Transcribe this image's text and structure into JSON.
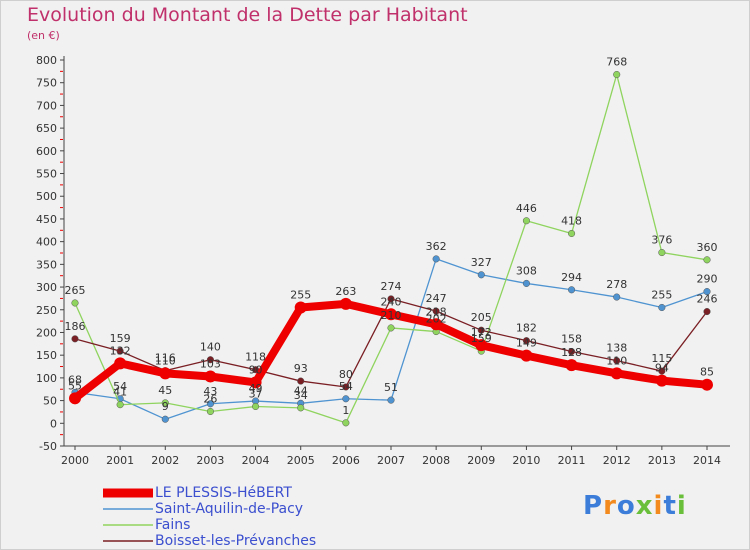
{
  "title": "Evolution du Montant de la Dette par Habitant",
  "subtitle": "(en €)",
  "logo": {
    "text": "Proxiti",
    "colors": [
      "#3b7dd8",
      "#f28a1e",
      "#3b7dd8",
      "#6abf3a",
      "#f28a1e",
      "#3b7dd8",
      "#6abf3a"
    ]
  },
  "chart_data": {
    "type": "line",
    "categories": [
      "2000",
      "2001",
      "2002",
      "2003",
      "2004",
      "2005",
      "2006",
      "2007",
      "2008",
      "2009",
      "2010",
      "2011",
      "2012",
      "2013",
      "2014"
    ],
    "ylim": [
      -50,
      800
    ],
    "yticks": [
      -50,
      0,
      50,
      100,
      150,
      200,
      250,
      300,
      350,
      400,
      450,
      500,
      550,
      600,
      650,
      700,
      750,
      800
    ],
    "grid": false,
    "legend_position": "bottom-left",
    "series": [
      {
        "name": "Saint-Aquilin-de-Pacy",
        "color": "#4f94d1",
        "values": [
          68,
          54,
          9,
          43,
          49,
          44,
          54,
          51,
          362,
          327,
          308,
          294,
          278,
          255,
          290
        ],
        "labels": [
          "68",
          "54",
          "9",
          "43",
          "49",
          "44",
          "54",
          "51",
          "362",
          "327",
          "308",
          "294",
          "278",
          "255",
          "290"
        ]
      },
      {
        "name": "Fains",
        "color": "#8fd45e",
        "values": [
          265,
          41,
          45,
          26,
          37,
          34,
          1,
          210,
          202,
          159,
          446,
          418,
          768,
          376,
          360
        ],
        "labels": [
          "265",
          "41",
          "45",
          "26",
          "37",
          "34",
          "1",
          "210",
          "202",
          "159",
          "446",
          "418",
          "768",
          "376",
          "360"
        ]
      },
      {
        "name": "Boisset-les-Prévanches",
        "color": "#7a1f24",
        "values": [
          186,
          159,
          116,
          140,
          118,
          93,
          80,
          274,
          247,
          205,
          182,
          158,
          138,
          115,
          246
        ],
        "labels": [
          "186",
          "159",
          "116",
          "140",
          "118",
          "93",
          "80",
          "274",
          "247",
          "205",
          "182",
          "158",
          "138",
          "115",
          "246"
        ]
      },
      {
        "name": "LE PLESSIS-HéBERT",
        "color": "#ee0000",
        "values": [
          55,
          132,
          110,
          103,
          90,
          255,
          263,
          240,
          218,
          172,
          149,
          128,
          110,
          94,
          85
        ],
        "labels": [
          "55",
          "132",
          "110",
          "103",
          "90",
          "255",
          "263",
          "240",
          "218",
          "172",
          "149",
          "128",
          "110",
          "94",
          "85"
        ]
      }
    ],
    "legend": [
      "LE PLESSIS-HéBERT",
      "Saint-Aquilin-de-Pacy",
      "Fains",
      "Boisset-les-Prévanches"
    ]
  }
}
